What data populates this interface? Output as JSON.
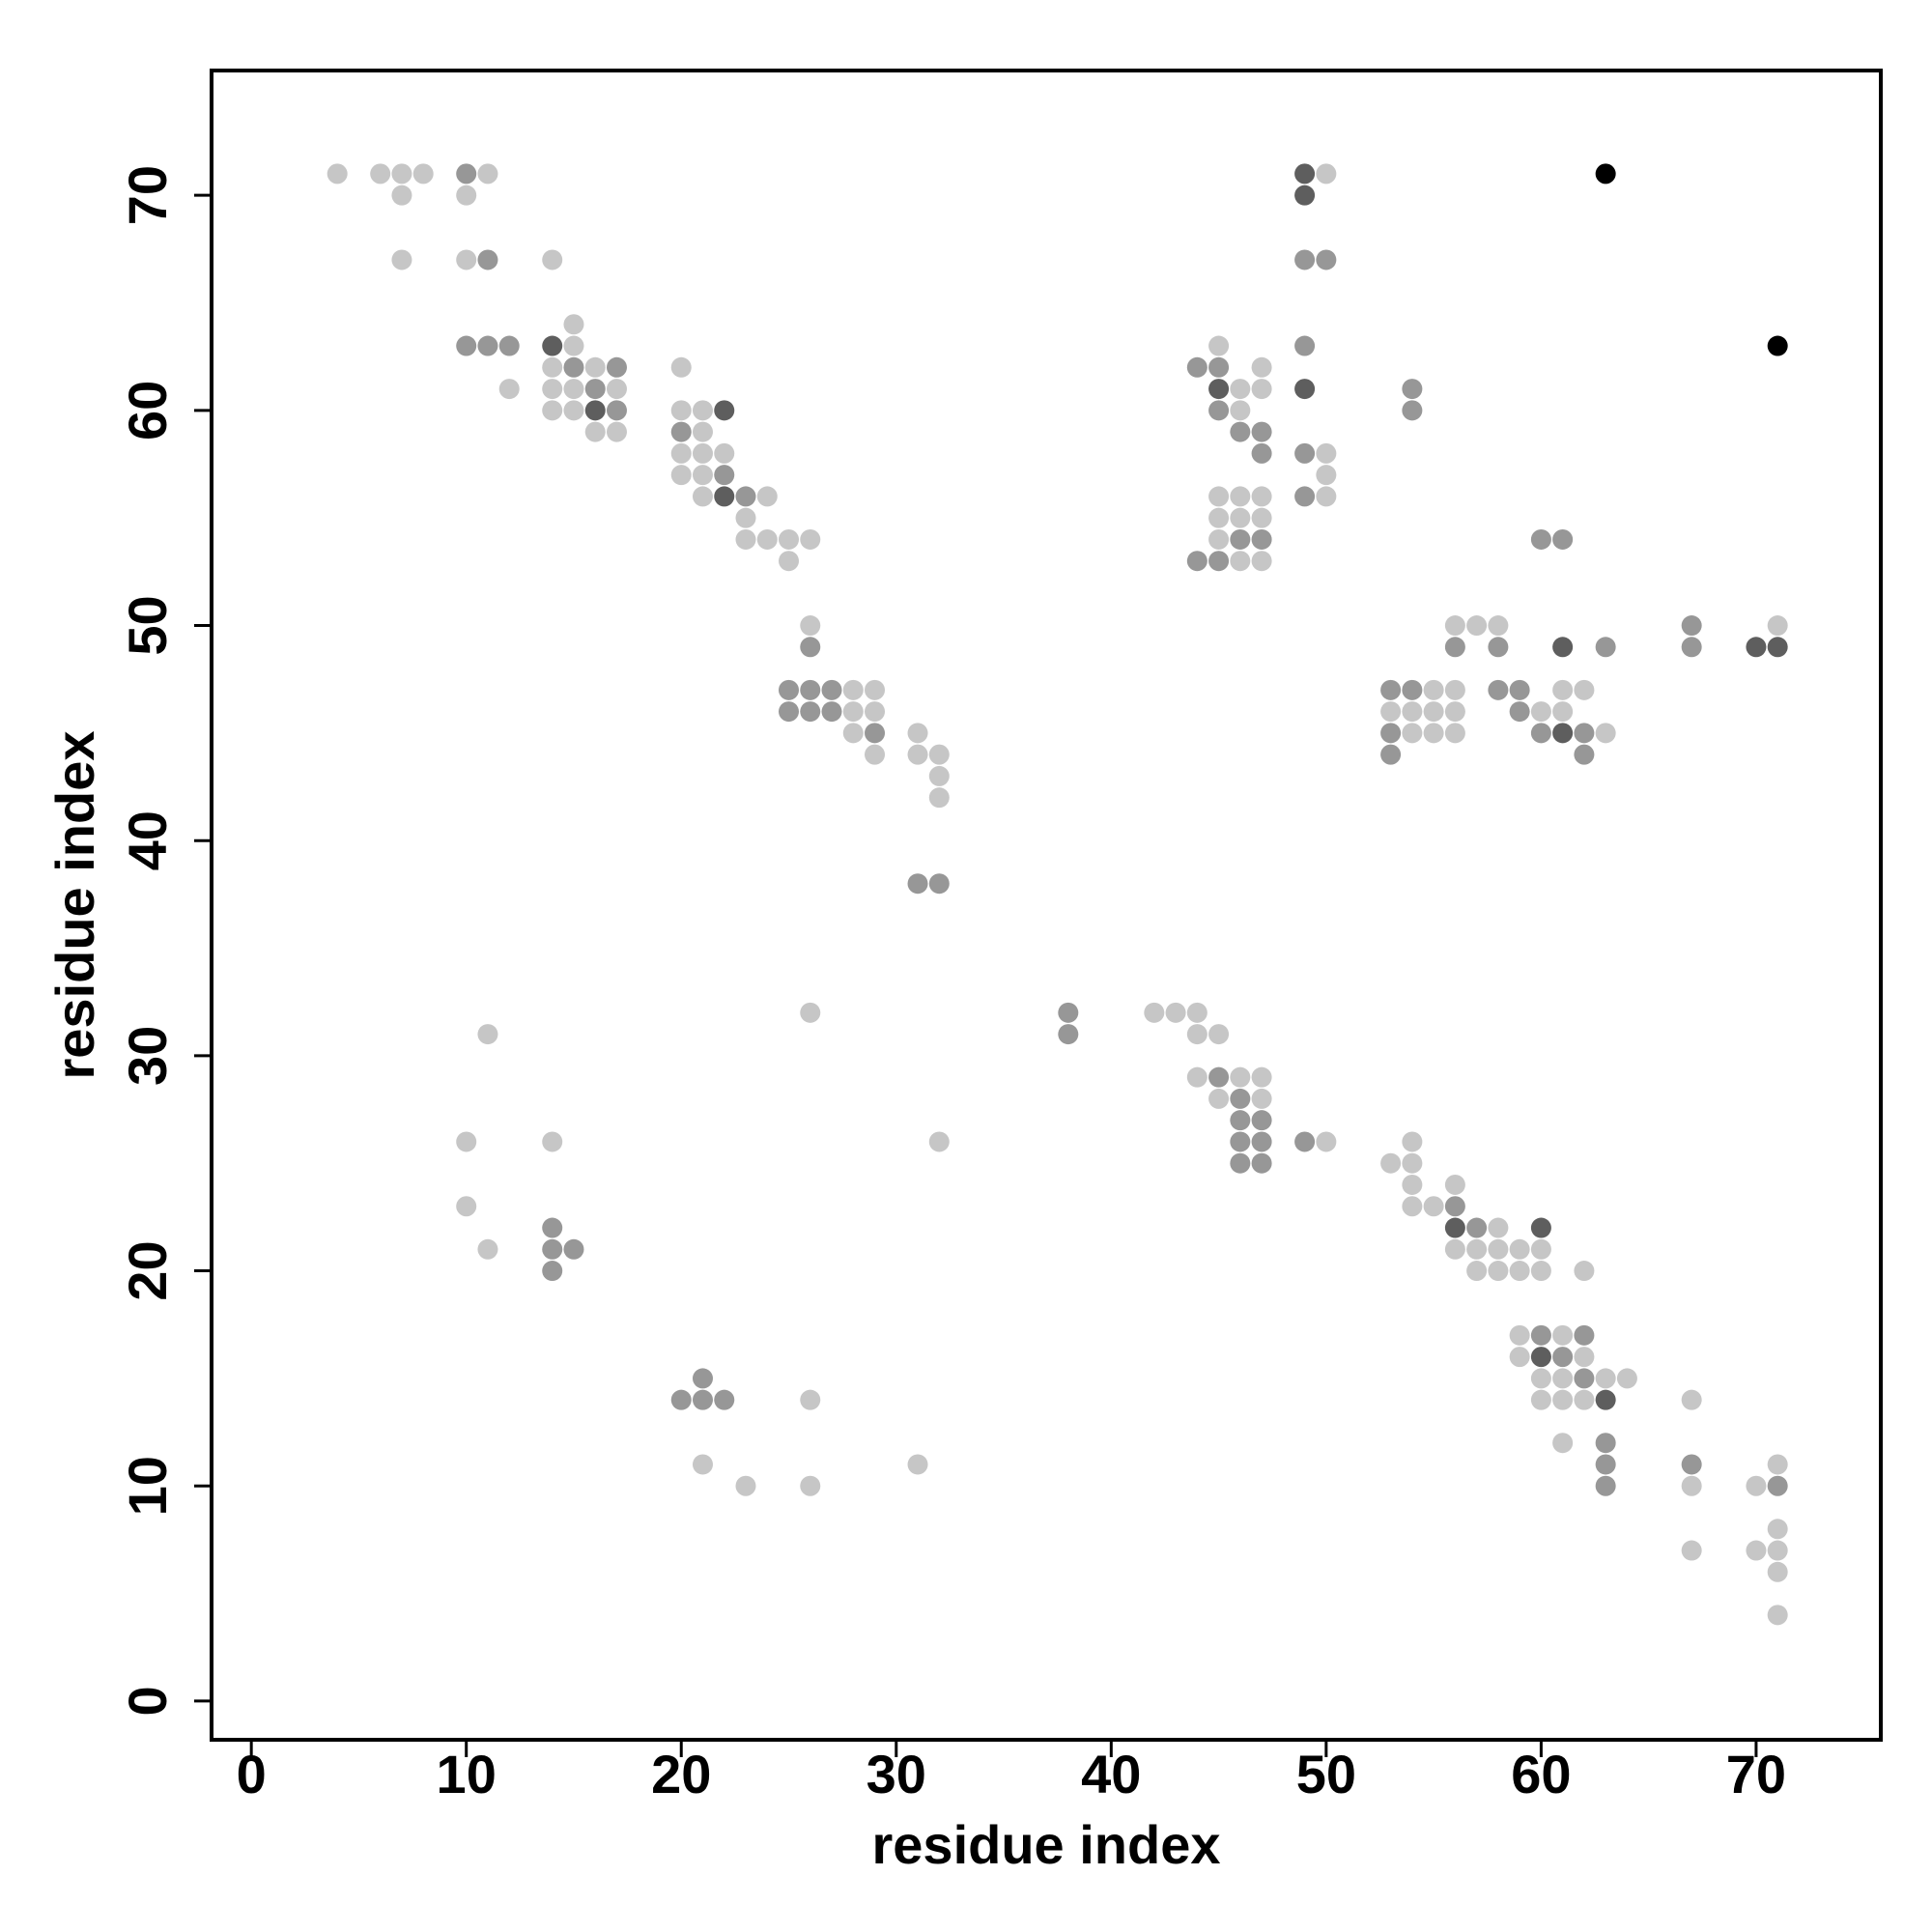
{
  "chart_data": {
    "type": "scatter",
    "xlabel": "residue index",
    "ylabel": "residue index",
    "xlim": [
      -1.85,
      75.8
    ],
    "ylim": [
      -1.8,
      75.8
    ],
    "xticks": [
      0,
      10,
      20,
      30,
      40,
      50,
      60,
      70
    ],
    "yticks": [
      0,
      10,
      20,
      30,
      40,
      50,
      60,
      70
    ],
    "series": [
      {
        "color": "#c6c6c6",
        "x": [
          4,
          6,
          7,
          8,
          11,
          50,
          7,
          10,
          7,
          10,
          14,
          15,
          15,
          45,
          14,
          16,
          20,
          47,
          12,
          14,
          15,
          17,
          46,
          47,
          14,
          15,
          20,
          21,
          46,
          16,
          17,
          21,
          20,
          21,
          22,
          50,
          20,
          21,
          50,
          21,
          24,
          45,
          46,
          47,
          50,
          23,
          45,
          46,
          47,
          23,
          24,
          25,
          26,
          45,
          25,
          46,
          47,
          26,
          56,
          57,
          58,
          71,
          28,
          29,
          55,
          56,
          61,
          62,
          28,
          29,
          53,
          54,
          55,
          56,
          60,
          61,
          28,
          31,
          54,
          55,
          56,
          63,
          29,
          31,
          32,
          32,
          32,
          26,
          42,
          43,
          44,
          11,
          44,
          45,
          44,
          46,
          47,
          45,
          47,
          10,
          14,
          32,
          50,
          54,
          53,
          54,
          54,
          56,
          10,
          54,
          55,
          58,
          11,
          56,
          57,
          58,
          59,
          60,
          57,
          58,
          59,
          60,
          62,
          59,
          61,
          59,
          62,
          60,
          61,
          63,
          64,
          26,
          60,
          61,
          62,
          67,
          61,
          21,
          31,
          71,
          23,
          26,
          67,
          70,
          71,
          67,
          70,
          71,
          71,
          71
        ],
        "values": [
          71,
          71,
          71,
          71,
          71,
          71,
          70,
          70,
          67,
          67,
          67,
          64,
          63,
          63,
          62,
          62,
          62,
          62,
          61,
          61,
          61,
          61,
          61,
          61,
          60,
          60,
          60,
          60,
          60,
          59,
          59,
          59,
          58,
          58,
          58,
          58,
          57,
          57,
          57,
          56,
          56,
          56,
          56,
          56,
          56,
          55,
          55,
          55,
          55,
          54,
          54,
          54,
          54,
          54,
          53,
          53,
          53,
          50,
          50,
          50,
          50,
          50,
          47,
          47,
          47,
          47,
          47,
          47,
          46,
          46,
          46,
          46,
          46,
          46,
          46,
          46,
          45,
          45,
          45,
          45,
          45,
          45,
          44,
          44,
          44,
          43,
          42,
          32,
          32,
          32,
          32,
          31,
          31,
          31,
          29,
          29,
          29,
          28,
          28,
          26,
          26,
          26,
          26,
          26,
          25,
          25,
          24,
          24,
          23,
          23,
          23,
          22,
          21,
          21,
          21,
          21,
          21,
          21,
          20,
          20,
          20,
          20,
          20,
          17,
          17,
          16,
          16,
          15,
          15,
          15,
          15,
          14,
          14,
          14,
          14,
          14,
          12,
          11,
          11,
          11,
          10,
          10,
          10,
          10,
          8,
          7,
          7,
          7,
          6,
          4
        ]
      },
      {
        "color": "#979797",
        "x": [
          10,
          11,
          49,
          50,
          10,
          11,
          12,
          49,
          15,
          17,
          44,
          45,
          16,
          54,
          17,
          45,
          54,
          20,
          46,
          47,
          47,
          49,
          22,
          23,
          49,
          46,
          47,
          60,
          61,
          44,
          45,
          67,
          26,
          56,
          58,
          63,
          67,
          25,
          26,
          27,
          53,
          54,
          58,
          59,
          25,
          26,
          27,
          59,
          29,
          53,
          60,
          62,
          53,
          62,
          31,
          32,
          38,
          38,
          45,
          46,
          46,
          47,
          46,
          47,
          49,
          46,
          47,
          56,
          14,
          57,
          14,
          15,
          14,
          60,
          62,
          61,
          21,
          62,
          20,
          21,
          22,
          63,
          63,
          67,
          63,
          71
        ],
        "values": [
          71,
          67,
          67,
          67,
          63,
          63,
          63,
          63,
          62,
          62,
          62,
          62,
          61,
          61,
          60,
          60,
          60,
          59,
          59,
          59,
          58,
          58,
          57,
          56,
          56,
          54,
          54,
          54,
          54,
          53,
          53,
          50,
          49,
          49,
          49,
          49,
          49,
          47,
          47,
          47,
          47,
          47,
          47,
          47,
          46,
          46,
          46,
          46,
          45,
          45,
          45,
          45,
          44,
          44,
          38,
          38,
          32,
          31,
          29,
          28,
          27,
          27,
          26,
          26,
          26,
          25,
          25,
          23,
          22,
          22,
          21,
          21,
          20,
          17,
          17,
          16,
          15,
          15,
          14,
          14,
          14,
          12,
          11,
          11,
          10,
          10
        ]
      },
      {
        "color": "#5e5e5e",
        "x": [
          49,
          49,
          14,
          45,
          49,
          16,
          22,
          22,
          61,
          70,
          71,
          61,
          56,
          60,
          60,
          63
        ],
        "values": [
          71,
          70,
          63,
          61,
          61,
          60,
          60,
          56,
          49,
          49,
          49,
          45,
          22,
          22,
          16,
          14
        ]
      },
      {
        "color": "#000000",
        "x": [
          63,
          71
        ],
        "values": [
          71,
          63
        ]
      }
    ]
  }
}
